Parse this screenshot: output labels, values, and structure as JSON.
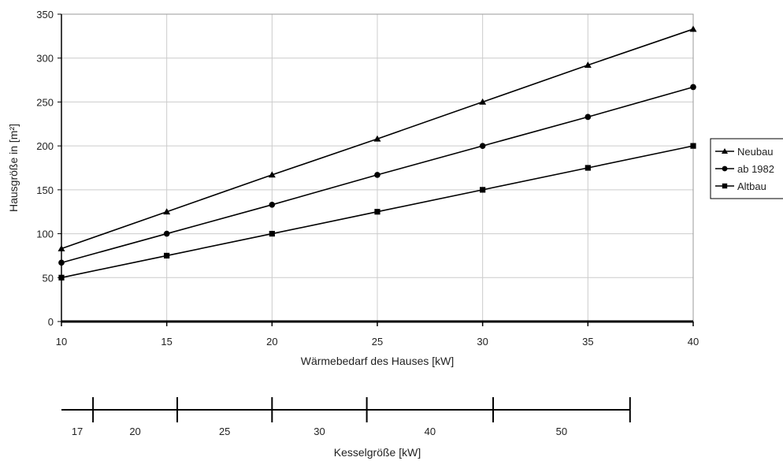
{
  "chart_data": [
    {
      "type": "line",
      "title": "",
      "xlabel": "Wärmebedarf des Hauses [kW]",
      "ylabel": "Hausgröße in [m²]",
      "x": [
        10,
        15,
        20,
        25,
        30,
        35,
        40
      ],
      "xlim": [
        10,
        40
      ],
      "ylim": [
        0,
        350
      ],
      "xticks": [
        "10",
        "15",
        "20",
        "25",
        "30",
        "35",
        "40"
      ],
      "yticks": [
        "0",
        "50",
        "100",
        "150",
        "200",
        "250",
        "300",
        "350"
      ],
      "grid": true,
      "legend_position": "right",
      "series": [
        {
          "name": "Neubau",
          "marker": "triangle",
          "values": [
            83,
            125,
            167,
            208,
            250,
            292,
            333
          ]
        },
        {
          "name": "ab 1982",
          "marker": "circle",
          "values": [
            67,
            100,
            133,
            167,
            200,
            233,
            267
          ]
        },
        {
          "name": "Altbau",
          "marker": "square",
          "values": [
            50,
            75,
            100,
            125,
            150,
            175,
            200
          ]
        }
      ]
    },
    {
      "type": "table",
      "xlabel": "Kesselgröße [kW]",
      "boundaries_kW": [
        10,
        11.5,
        15.5,
        20,
        24.5,
        30.5,
        37
      ],
      "labels": [
        "17",
        "20",
        "25",
        "30",
        "40",
        "50"
      ]
    }
  ],
  "colors": {
    "line": "#000000",
    "grid": "#cccccc",
    "axis": "#000000"
  }
}
